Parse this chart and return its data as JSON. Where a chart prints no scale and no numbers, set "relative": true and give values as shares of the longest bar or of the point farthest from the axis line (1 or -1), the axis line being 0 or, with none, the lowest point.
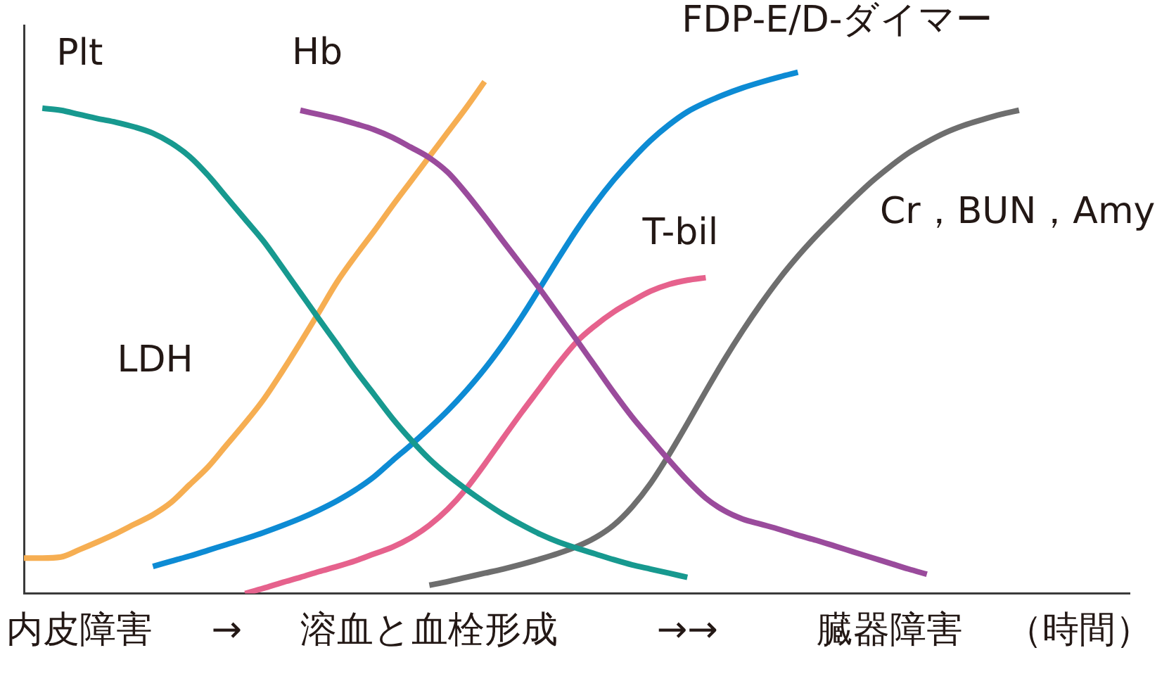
{
  "chart_data": {
    "type": "line",
    "relative": true,
    "marker": "none",
    "line_style": "solid",
    "xlabel": "（時間）",
    "categories": [
      null,
      null,
      null,
      "内皮障害",
      null,
      null,
      null,
      null,
      null,
      null,
      null,
      "→",
      null,
      null,
      null,
      null,
      null,
      null,
      null,
      null,
      null,
      null,
      "溶血と血栓形成",
      null,
      null,
      null,
      null,
      null,
      null,
      null,
      null,
      null,
      null,
      null,
      null,
      null,
      "→→",
      null,
      null,
      null,
      null,
      null,
      null,
      null,
      null,
      null,
      null,
      "臓器障害",
      null,
      null,
      null,
      null,
      null,
      null,
      null,
      null,
      null,
      null,
      null,
      null,
      null
    ],
    "series": [
      {
        "name": "Plt",
        "color": "#17998f",
        "values": [
          null,
          0.931,
          0.927,
          0.919,
          0.911,
          0.904,
          0.895,
          0.883,
          0.864,
          0.838,
          0.802,
          0.76,
          0.718,
          0.676,
          0.627,
          0.577,
          0.527,
          0.478,
          0.428,
          0.382,
          0.336,
          0.295,
          0.258,
          0.227,
          0.2,
          0.175,
          0.152,
          0.132,
          0.114,
          0.099,
          0.087,
          0.076,
          0.065,
          0.055,
          0.047,
          0.039,
          0.031,
          null,
          null,
          null,
          null,
          null,
          null,
          null,
          null,
          null,
          null,
          null,
          null,
          null,
          null,
          null,
          null,
          null,
          null,
          null,
          null,
          null,
          null,
          null,
          null
        ]
      },
      {
        "name": "Hb",
        "color": "#9a4b9c",
        "values": [
          null,
          null,
          null,
          null,
          null,
          null,
          null,
          null,
          null,
          null,
          null,
          null,
          null,
          null,
          null,
          0.927,
          0.919,
          0.911,
          0.901,
          0.89,
          0.875,
          0.856,
          0.836,
          0.808,
          0.768,
          0.723,
          0.676,
          0.63,
          0.584,
          0.535,
          0.486,
          0.436,
          0.386,
          0.339,
          0.297,
          0.256,
          0.217,
          0.183,
          0.159,
          0.143,
          0.133,
          0.123,
          0.112,
          0.102,
          0.091,
          0.08,
          0.069,
          0.058,
          0.047,
          0.037,
          null,
          null,
          null,
          null,
          null,
          null,
          null,
          null,
          null,
          null,
          null
        ]
      },
      {
        "name": "LDH",
        "color": "#f6ae52",
        "values": [
          0.068,
          0.068,
          0.07,
          0.084,
          0.099,
          0.115,
          0.133,
          0.151,
          0.175,
          0.209,
          0.243,
          0.285,
          0.327,
          0.372,
          0.425,
          0.481,
          0.539,
          0.598,
          0.648,
          0.695,
          0.744,
          0.791,
          0.838,
          0.885,
          0.932,
          0.982,
          null,
          null,
          null,
          null,
          null,
          null,
          null,
          null,
          null,
          null,
          null,
          null,
          null,
          null,
          null,
          null,
          null,
          null,
          null,
          null,
          null,
          null,
          null,
          null,
          null,
          null,
          null,
          null,
          null,
          null,
          null,
          null,
          null,
          null,
          null
        ]
      },
      {
        "name": "FDP-E/D-ダイマー",
        "color": "#0d8bd4",
        "values": [
          null,
          null,
          null,
          null,
          null,
          null,
          null,
          0.052,
          0.062,
          0.072,
          0.083,
          0.094,
          0.105,
          0.117,
          0.13,
          0.144,
          0.16,
          0.178,
          0.199,
          0.224,
          0.255,
          0.285,
          0.317,
          0.351,
          0.389,
          0.431,
          0.478,
          0.53,
          0.586,
          0.643,
          0.698,
          0.748,
          0.793,
          0.833,
          0.869,
          0.899,
          0.924,
          0.942,
          0.957,
          0.97,
          0.981,
          0.991,
          1,
          null,
          null,
          null,
          null,
          null,
          null,
          null,
          null,
          null,
          null,
          null,
          null,
          null,
          null,
          null,
          null,
          null,
          null
        ]
      },
      {
        "name": "T-bil",
        "color": "#e6628d",
        "values": [
          null,
          null,
          null,
          null,
          null,
          null,
          null,
          null,
          null,
          null,
          null,
          null,
          0,
          0.01,
          0.021,
          0.031,
          0.042,
          0.052,
          0.063,
          0.076,
          0.089,
          0.107,
          0.131,
          0.162,
          0.201,
          0.248,
          0.298,
          0.347,
          0.394,
          0.441,
          0.483,
          0.514,
          0.54,
          0.561,
          0.58,
          0.593,
          0.601,
          0.606,
          null,
          null,
          null,
          null,
          null,
          null,
          null,
          null,
          null,
          null,
          null,
          null,
          null,
          null,
          null,
          null,
          null,
          null,
          null,
          null,
          null,
          null,
          null
        ]
      },
      {
        "name": "Cr，BUN，Amy",
        "color": "#6e6e6e",
        "values": [
          null,
          null,
          null,
          null,
          null,
          null,
          null,
          null,
          null,
          null,
          null,
          null,
          null,
          null,
          null,
          null,
          null,
          null,
          null,
          null,
          null,
          null,
          0.016,
          0.023,
          0.031,
          0.039,
          0.047,
          0.056,
          0.066,
          0.077,
          0.09,
          0.107,
          0.131,
          0.166,
          0.211,
          0.266,
          0.326,
          0.388,
          0.448,
          0.504,
          0.556,
          0.604,
          0.647,
          0.686,
          0.722,
          0.757,
          0.79,
          0.819,
          0.845,
          0.866,
          0.884,
          0.898,
          0.909,
          0.919,
          0.927,
          null,
          null,
          null,
          null,
          null,
          null
        ]
      }
    ]
  }
}
